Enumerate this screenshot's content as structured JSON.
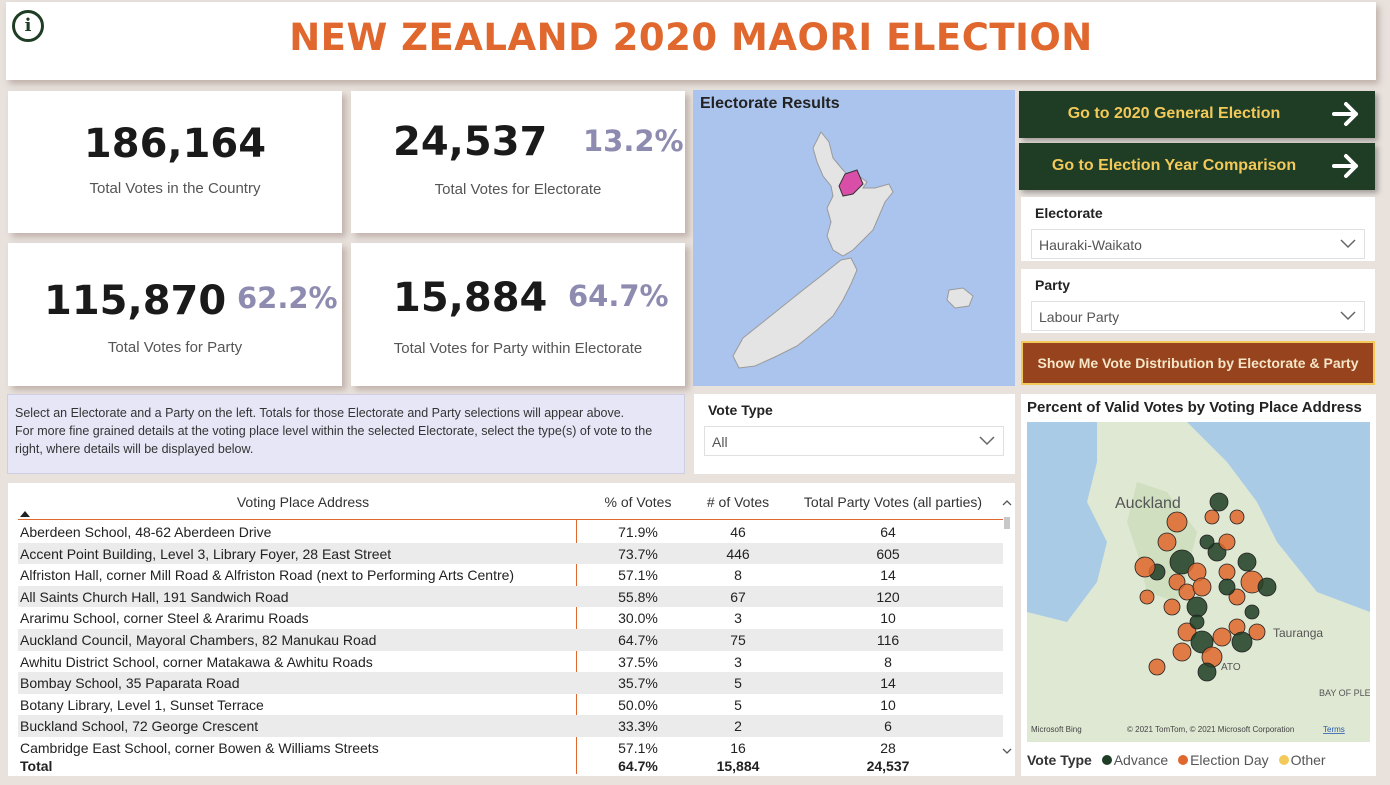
{
  "header": {
    "title": "NEW ZEALAND 2020 MAORI ELECTION",
    "info_icon": "info-icon"
  },
  "kpis": {
    "total_votes_country": {
      "value": "186,164",
      "label": "Total Votes in the Country"
    },
    "total_votes_electorate": {
      "value": "24,537",
      "pct": "13.2%",
      "label": "Total Votes for Electorate"
    },
    "total_votes_party": {
      "value": "115,870",
      "pct": "62.2%",
      "label": "Total Votes for Party"
    },
    "party_within_electorate": {
      "value": "15,884",
      "pct": "64.7%",
      "label": "Total Votes for Party within Electorate"
    }
  },
  "map": {
    "title": "Electorate Results"
  },
  "nav": {
    "general_election": "Go to 2020 General Election",
    "year_comparison": "Go to Election Year Comparison"
  },
  "slicers": {
    "electorate": {
      "title": "Electorate",
      "value": "Hauraki-Waikato"
    },
    "party": {
      "title": "Party",
      "value": "Labour Party"
    },
    "vote_type": {
      "title": "Vote Type",
      "value": "All"
    }
  },
  "show_button": "Show Me Vote Distribution by Electorate & Party",
  "instructions": {
    "line1": "Select an Electorate and a Party on the left.  Totals for those Electorate and Party selections will appear above.",
    "line2": "For more fine grained details at the voting place level within the selected Electorate, select the type(s) of vote to the right, where details will be displayed below."
  },
  "table": {
    "headers": [
      "Voting Place Address",
      "% of Votes",
      "# of Votes",
      "Total Party Votes (all parties)"
    ],
    "rows": [
      [
        "Aberdeen School, 48-62 Aberdeen Drive",
        "71.9%",
        "46",
        "64"
      ],
      [
        "Accent Point Building, Level 3, Library Foyer, 28 East Street",
        "73.7%",
        "446",
        "605"
      ],
      [
        "Alfriston Hall, corner Mill Road & Alfriston Road (next to Performing Arts Centre)",
        "57.1%",
        "8",
        "14"
      ],
      [
        "All Saints Church Hall, 191 Sandwich Road",
        "55.8%",
        "67",
        "120"
      ],
      [
        "Ararimu School, corner Steel & Ararimu Roads",
        "30.0%",
        "3",
        "10"
      ],
      [
        "Auckland Council, Mayoral Chambers, 82 Manukau Road",
        "64.7%",
        "75",
        "116"
      ],
      [
        "Awhitu District School, corner Matakawa & Awhitu Roads",
        "37.5%",
        "3",
        "8"
      ],
      [
        "Bombay School, 35 Paparata Road",
        "35.7%",
        "5",
        "14"
      ],
      [
        "Botany Library, Level 1, Sunset Terrace",
        "50.0%",
        "5",
        "10"
      ],
      [
        "Buckland School, 72 George Crescent",
        "33.3%",
        "2",
        "6"
      ],
      [
        "Cambridge East School, corner Bowen & Williams Streets",
        "57.1%",
        "16",
        "28"
      ]
    ],
    "total": [
      "Total",
      "64.7%",
      "15,884",
      "24,537"
    ]
  },
  "bubble_map": {
    "title": "Percent of Valid Votes by Voting Place Address",
    "places": [
      "Auckland",
      "Tauranga",
      "BAY OF PLE",
      "ATO"
    ],
    "attribution": "© 2021 TomTom, © 2021 Microsoft Corporation",
    "terms": "Terms",
    "bing": "Microsoft Bing",
    "legend_title": "Vote Type",
    "legend": [
      {
        "name": "Advance",
        "color": "#1f3d24"
      },
      {
        "name": "Election Day",
        "color": "#e0672d"
      },
      {
        "name": "Other",
        "color": "#f3c95a"
      }
    ]
  }
}
